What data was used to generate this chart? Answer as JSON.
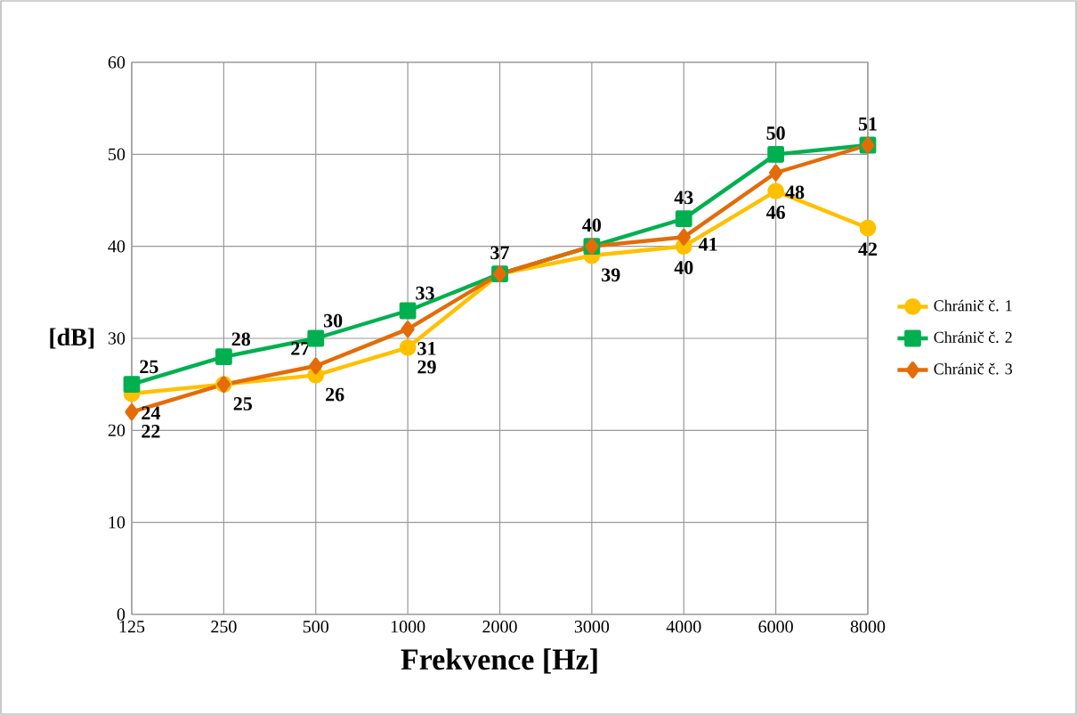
{
  "chart_data": {
    "type": "line",
    "xlabel": "Frekvence [Hz]",
    "ylabel": "[dB]",
    "categories": [
      "125",
      "250",
      "500",
      "1000",
      "2000",
      "3000",
      "4000",
      "6000",
      "8000"
    ],
    "series": [
      {
        "name": "Chránič č. 1",
        "color": "#ffc000",
        "marker": "circle",
        "values": [
          24,
          25,
          26,
          29,
          37,
          39,
          40,
          46,
          42
        ],
        "value_labels": [
          "24",
          "25",
          "26",
          "29",
          null,
          "39",
          "40",
          "46",
          "42"
        ]
      },
      {
        "name": "Chránič č. 2",
        "color": "#00b050",
        "marker": "square",
        "values": [
          25,
          28,
          30,
          33,
          37,
          40,
          43,
          50,
          51
        ],
        "value_labels": [
          "25",
          "28",
          "30",
          "33",
          "37",
          "40",
          "43",
          "50",
          "51"
        ]
      },
      {
        "name": "Chránič č. 3",
        "color": "#e36c09",
        "marker": "diamond",
        "values": [
          22,
          25,
          27,
          31,
          37,
          40,
          41,
          48,
          51
        ],
        "value_labels": [
          "22",
          null,
          "27",
          "31",
          null,
          null,
          "41",
          "48",
          null
        ]
      }
    ],
    "ylim": [
      0,
      60
    ],
    "yticks": [
      0,
      10,
      20,
      30,
      40,
      50,
      60
    ],
    "grid": true,
    "legend": "right",
    "line_style": "solid"
  }
}
